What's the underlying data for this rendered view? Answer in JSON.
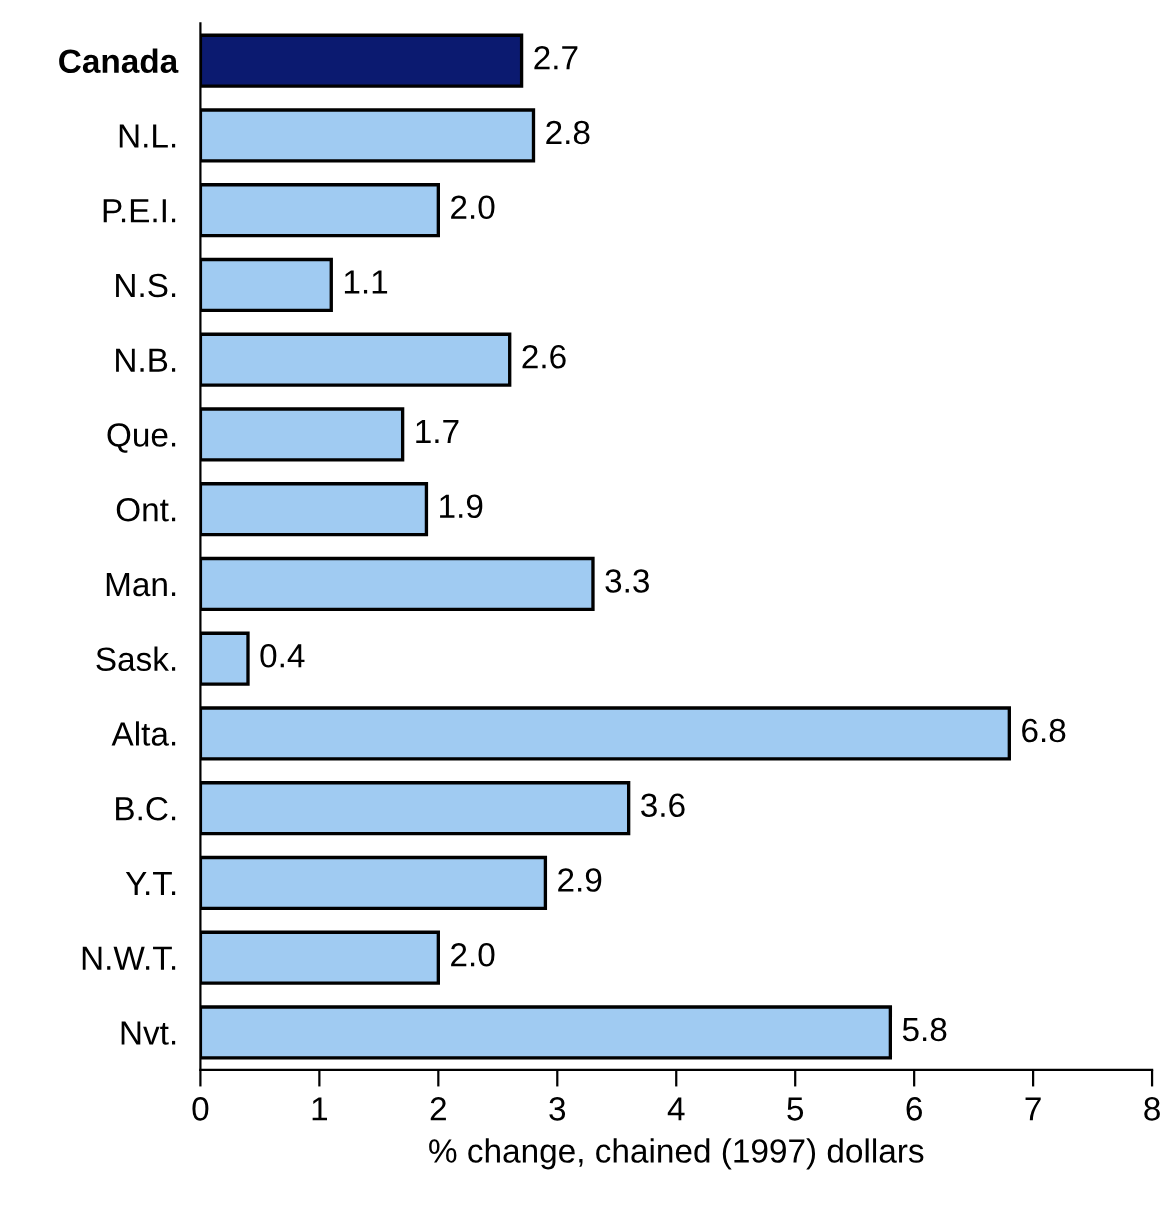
{
  "chart_data": {
    "type": "bar",
    "orientation": "horizontal",
    "xlabel": "% change, chained (1997) dollars",
    "categories": [
      "Canada",
      "N.L.",
      "P.E.I.",
      "N.S.",
      "N.B.",
      "Que.",
      "Ont.",
      "Man.",
      "Sask.",
      "Alta.",
      "B.C.",
      "Y.T.",
      "N.W.T.",
      "Nvt."
    ],
    "values": [
      2.7,
      2.8,
      2.0,
      1.1,
      2.6,
      1.7,
      1.9,
      3.3,
      0.4,
      6.8,
      3.6,
      2.9,
      2.0,
      5.8
    ],
    "colors": [
      "#0b1a70",
      "#a0cbf2",
      "#a0cbf2",
      "#a0cbf2",
      "#a0cbf2",
      "#a0cbf2",
      "#a0cbf2",
      "#a0cbf2",
      "#a0cbf2",
      "#a0cbf2",
      "#a0cbf2",
      "#a0cbf2",
      "#a0cbf2",
      "#a0cbf2"
    ],
    "value_labels": [
      "2.7",
      "2.8",
      "2.0",
      "1.1",
      "2.6",
      "1.7",
      "1.9",
      "3.3",
      "0.4",
      "6.8",
      "3.6",
      "2.9",
      "2.0",
      "5.8"
    ],
    "xlim": [
      0,
      8
    ],
    "xticks": [
      0,
      1,
      2,
      3,
      4,
      5,
      6,
      7,
      8
    ],
    "grid": false
  }
}
